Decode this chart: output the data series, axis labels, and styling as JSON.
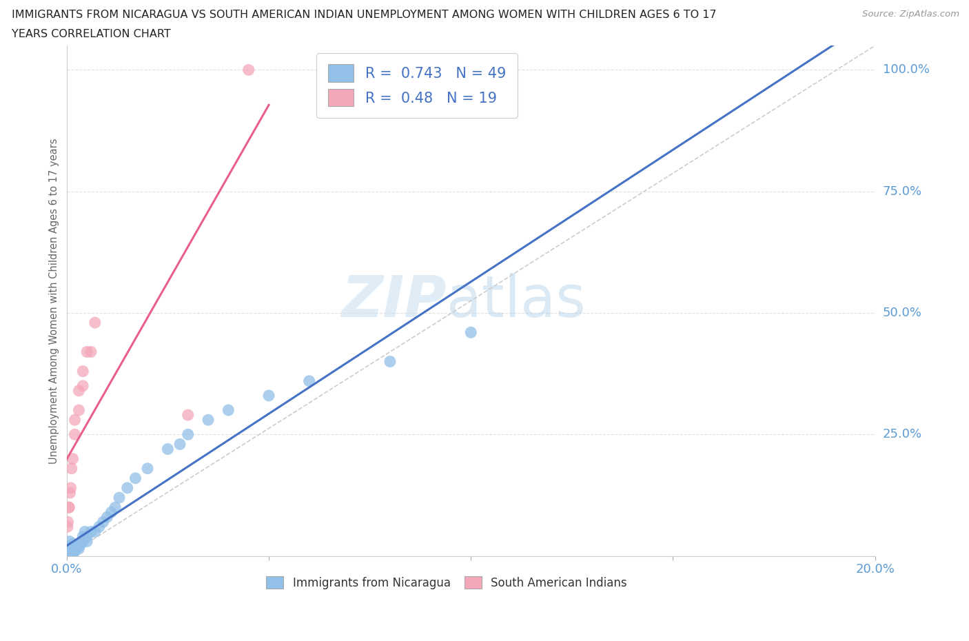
{
  "title_line1": "IMMIGRANTS FROM NICARAGUA VS SOUTH AMERICAN INDIAN UNEMPLOYMENT AMONG WOMEN WITH CHILDREN AGES 6 TO 17",
  "title_line2": "YEARS CORRELATION CHART",
  "source": "Source: ZipAtlas.com",
  "ylabel": "Unemployment Among Women with Children Ages 6 to 17 years",
  "xlim": [
    0.0,
    0.2
  ],
  "ylim": [
    0.0,
    1.05
  ],
  "xticks": [
    0.0,
    0.05,
    0.1,
    0.15,
    0.2
  ],
  "yticks": [
    0.0,
    0.25,
    0.5,
    0.75,
    1.0
  ],
  "nicaragua_R": 0.743,
  "nicaragua_N": 49,
  "sa_indian_R": 0.48,
  "sa_indian_N": 19,
  "nicaragua_color": "#92c0e8",
  "sa_indian_color": "#f4a7b9",
  "nicaragua_line_color": "#4472c4",
  "sa_indian_line_color": "#e8608a",
  "diagonal_color": "#cccccc",
  "watermark_zip": "ZIP",
  "watermark_atlas": "atlas",
  "background_color": "#ffffff",
  "grid_color": "#e0e0e0",
  "blue_text_color": "#4472c4",
  "tick_label_color": "#5b9bd5",
  "nicaragua_x": [
    0.0002,
    0.0003,
    0.0004,
    0.0005,
    0.0006,
    0.0007,
    0.0008,
    0.0009,
    0.001,
    0.001,
    0.0012,
    0.0013,
    0.0014,
    0.0015,
    0.0016,
    0.0017,
    0.0018,
    0.002,
    0.002,
    0.0022,
    0.0025,
    0.003,
    0.003,
    0.0035,
    0.004,
    0.004,
    0.0045,
    0.005,
    0.005,
    0.006,
    0.007,
    0.008,
    0.009,
    0.01,
    0.011,
    0.012,
    0.013,
    0.015,
    0.017,
    0.02,
    0.025,
    0.028,
    0.03,
    0.035,
    0.04,
    0.05,
    0.06,
    0.08,
    0.1
  ],
  "nicaragua_y": [
    0.01,
    0.015,
    0.005,
    0.02,
    0.01,
    0.03,
    0.005,
    0.01,
    0.005,
    0.02,
    0.01,
    0.015,
    0.02,
    0.01,
    0.025,
    0.005,
    0.015,
    0.01,
    0.02,
    0.015,
    0.02,
    0.02,
    0.015,
    0.025,
    0.04,
    0.03,
    0.05,
    0.03,
    0.04,
    0.05,
    0.05,
    0.06,
    0.07,
    0.08,
    0.09,
    0.1,
    0.12,
    0.14,
    0.16,
    0.18,
    0.22,
    0.23,
    0.25,
    0.28,
    0.3,
    0.33,
    0.36,
    0.4,
    0.46
  ],
  "sa_indian_x": [
    0.0002,
    0.0003,
    0.0005,
    0.0006,
    0.0008,
    0.001,
    0.0012,
    0.0015,
    0.002,
    0.002,
    0.003,
    0.003,
    0.004,
    0.004,
    0.005,
    0.006,
    0.007,
    0.03,
    0.045
  ],
  "sa_indian_y": [
    0.06,
    0.07,
    0.1,
    0.1,
    0.13,
    0.14,
    0.18,
    0.2,
    0.25,
    0.28,
    0.3,
    0.34,
    0.35,
    0.38,
    0.42,
    0.42,
    0.48,
    0.29,
    1.0
  ],
  "sa_indian_line_x_start": 0.0,
  "sa_indian_line_x_end": 0.05,
  "nicaragua_line_x_start": 0.0,
  "nicaragua_line_x_end": 0.2
}
